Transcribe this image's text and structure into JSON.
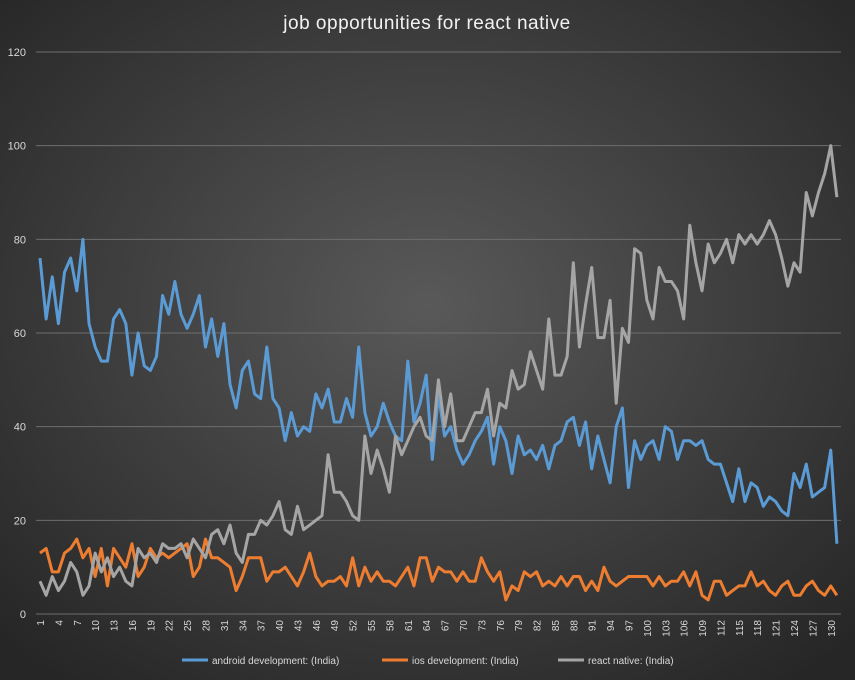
{
  "chart_data": {
    "type": "line",
    "title": "job opportunities  for react native",
    "categories": [
      1,
      null,
      null,
      4,
      null,
      null,
      7,
      null,
      null,
      10,
      null,
      null,
      13,
      null,
      null,
      16,
      null,
      null,
      19,
      null,
      null,
      22,
      null,
      null,
      25,
      null,
      null,
      28,
      null,
      null,
      31,
      null,
      null,
      34,
      null,
      null,
      37,
      null,
      null,
      40,
      null,
      null,
      43,
      null,
      null,
      46,
      null,
      null,
      49,
      null,
      null,
      52,
      null,
      null,
      55,
      null,
      null,
      58,
      null,
      null,
      61,
      null,
      null,
      64,
      null,
      null,
      67,
      null,
      null,
      70,
      null,
      null,
      73,
      null,
      null,
      76,
      null,
      null,
      79,
      null,
      null,
      82,
      null,
      null,
      85,
      null,
      null,
      88,
      null,
      null,
      91,
      null,
      null,
      94,
      null,
      null,
      97,
      null,
      null,
      100,
      null,
      null,
      103,
      null,
      null,
      106,
      null,
      null,
      109,
      null,
      null,
      112,
      null,
      null,
      115,
      null,
      null,
      118,
      null,
      null,
      121,
      null,
      null,
      124,
      null,
      null,
      127,
      null,
      null,
      130,
      null
    ],
    "series": [
      {
        "name": "android development: (India)",
        "color": "#5b9bd5",
        "values": [
          76,
          63,
          72,
          62,
          73,
          76,
          69,
          80,
          62,
          57,
          54,
          54,
          63,
          65,
          62,
          51,
          60,
          53,
          52,
          55,
          68,
          64,
          71,
          64,
          61,
          64,
          68,
          57,
          63,
          55,
          62,
          49,
          44,
          52,
          54,
          47,
          46,
          57,
          46,
          44,
          37,
          43,
          38,
          40,
          39,
          47,
          44,
          48,
          41,
          41,
          46,
          42,
          57,
          43,
          38,
          40,
          45,
          41,
          38,
          37,
          54,
          41,
          45,
          51,
          33,
          47,
          38,
          40,
          35,
          32,
          34,
          37,
          39,
          42,
          32,
          40,
          37,
          30,
          38,
          34,
          35,
          33,
          36,
          31,
          36,
          37,
          41,
          42,
          36,
          41,
          31,
          38,
          33,
          28,
          40,
          44,
          27,
          37,
          33,
          36,
          37,
          33,
          40,
          39,
          33,
          37,
          37,
          36,
          37,
          33,
          32,
          32,
          28,
          24,
          31,
          24,
          28,
          27,
          23,
          25,
          24,
          22,
          21,
          30,
          27,
          32,
          25,
          26,
          27,
          35,
          15
        ]
      },
      {
        "name": "ios development: (India)",
        "color": "#ed7d31",
        "values": [
          13,
          14,
          9,
          9,
          13,
          14,
          16,
          12,
          14,
          8,
          14,
          6,
          14,
          12,
          10,
          15,
          8,
          10,
          14,
          12,
          13,
          12,
          13,
          14,
          15,
          8,
          10,
          16,
          12,
          12,
          11,
          10,
          5,
          8,
          12,
          12,
          12,
          7,
          9,
          9,
          10,
          8,
          6,
          9,
          13,
          8,
          6,
          7,
          7,
          8,
          6,
          12,
          6,
          10,
          7,
          9,
          7,
          7,
          6,
          8,
          10,
          6,
          12,
          12,
          7,
          10,
          9,
          9,
          7,
          9,
          7,
          7,
          12,
          9,
          7,
          9,
          3,
          6,
          5,
          9,
          8,
          9,
          6,
          7,
          6,
          8,
          6,
          8,
          8,
          5,
          7,
          5,
          10,
          7,
          6,
          7,
          8,
          8,
          8,
          8,
          6,
          8,
          6,
          7,
          7,
          9,
          6,
          9,
          4,
          3,
          7,
          7,
          4,
          5,
          6,
          6,
          9,
          6,
          7,
          5,
          4,
          6,
          7,
          4,
          4,
          6,
          7,
          5,
          4,
          6,
          4
        ]
      },
      {
        "name": "react native: (India)",
        "color": "#a5a5a5",
        "values": [
          7,
          4,
          8,
          5,
          7,
          11,
          9,
          4,
          6,
          13,
          9,
          12,
          8,
          10,
          7,
          6,
          14,
          12,
          13,
          11,
          15,
          14,
          14,
          15,
          12,
          16,
          14,
          12,
          17,
          18,
          15,
          19,
          13,
          11,
          17,
          17,
          20,
          19,
          21,
          24,
          18,
          17,
          23,
          18,
          19,
          20,
          21,
          34,
          26,
          26,
          24,
          21,
          20,
          38,
          30,
          35,
          31,
          26,
          38,
          34,
          37,
          40,
          42,
          38,
          37,
          50,
          40,
          47,
          37,
          37,
          40,
          43,
          43,
          48,
          38,
          45,
          44,
          52,
          48,
          49,
          56,
          52,
          48,
          63,
          51,
          51,
          55,
          75,
          57,
          66,
          74,
          59,
          59,
          67,
          45,
          61,
          58,
          78,
          77,
          67,
          63,
          74,
          71,
          71,
          69,
          63,
          83,
          75,
          69,
          79,
          75,
          77,
          80,
          75,
          81,
          79,
          81,
          79,
          81,
          84,
          81,
          76,
          70,
          75,
          73,
          90,
          85,
          90,
          94,
          100,
          89
        ]
      }
    ],
    "ylim": [
      0,
      120
    ],
    "yticks": [
      0,
      20,
      40,
      60,
      80,
      100,
      120
    ],
    "grid": true,
    "legend": "bottom"
  }
}
